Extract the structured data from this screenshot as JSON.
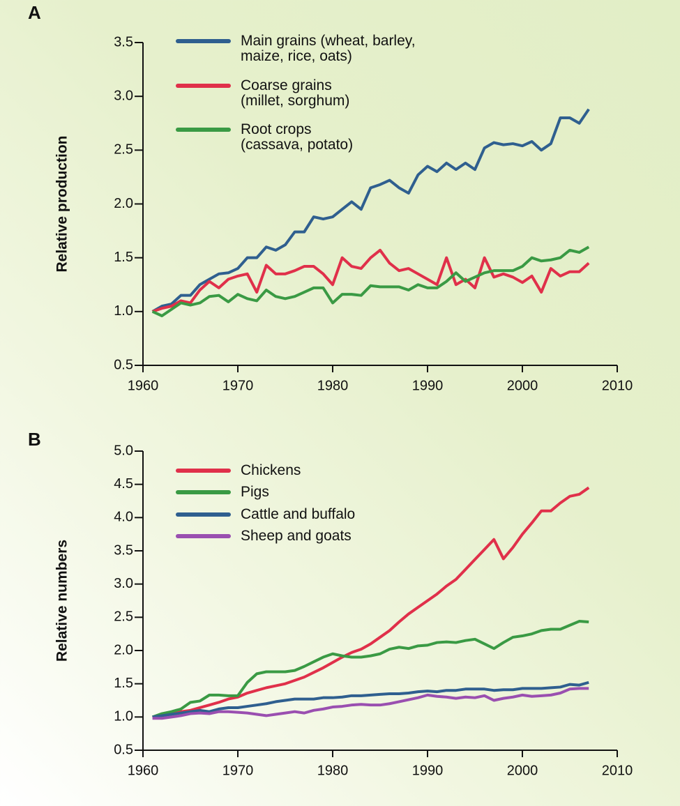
{
  "chart_data": [
    {
      "type": "line",
      "label": "A",
      "y_label": "Relative production",
      "x": [
        1961,
        1962,
        1963,
        1964,
        1965,
        1966,
        1967,
        1968,
        1969,
        1970,
        1971,
        1972,
        1973,
        1974,
        1975,
        1976,
        1977,
        1978,
        1979,
        1980,
        1981,
        1982,
        1983,
        1984,
        1985,
        1986,
        1987,
        1988,
        1989,
        1990,
        1991,
        1992,
        1993,
        1994,
        1995,
        1996,
        1997,
        1998,
        1999,
        2000,
        2001,
        2002,
        2003,
        2004,
        2005,
        2006,
        2007
      ],
      "series": [
        {
          "name": "Main grains (wheat, barley,\nmaize, rice, oats)",
          "color": "#2f5f8f",
          "values": [
            1.0,
            1.05,
            1.07,
            1.15,
            1.15,
            1.25,
            1.3,
            1.35,
            1.36,
            1.4,
            1.5,
            1.5,
            1.6,
            1.57,
            1.62,
            1.74,
            1.74,
            1.88,
            1.86,
            1.88,
            1.95,
            2.02,
            1.95,
            2.15,
            2.18,
            2.22,
            2.15,
            2.1,
            2.27,
            2.35,
            2.3,
            2.38,
            2.32,
            2.38,
            2.32,
            2.52,
            2.57,
            2.55,
            2.56,
            2.54,
            2.58,
            2.5,
            2.56,
            2.8,
            2.8,
            2.75,
            2.88
          ]
        },
        {
          "name": "Coarse grains\n(millet, sorghum)",
          "color": "#e0304a",
          "values": [
            1.0,
            1.03,
            1.05,
            1.1,
            1.08,
            1.2,
            1.28,
            1.22,
            1.3,
            1.33,
            1.35,
            1.18,
            1.43,
            1.35,
            1.35,
            1.38,
            1.42,
            1.42,
            1.35,
            1.25,
            1.5,
            1.42,
            1.4,
            1.5,
            1.57,
            1.45,
            1.38,
            1.4,
            1.35,
            1.3,
            1.25,
            1.5,
            1.25,
            1.3,
            1.22,
            1.5,
            1.32,
            1.35,
            1.32,
            1.27,
            1.33,
            1.18,
            1.4,
            1.33,
            1.37,
            1.37,
            1.45
          ]
        },
        {
          "name": "Root crops\n(cassava, potato)",
          "color": "#3a9a44",
          "values": [
            1.0,
            0.96,
            1.02,
            1.08,
            1.06,
            1.08,
            1.14,
            1.15,
            1.09,
            1.16,
            1.12,
            1.1,
            1.2,
            1.14,
            1.12,
            1.14,
            1.18,
            1.22,
            1.22,
            1.08,
            1.16,
            1.16,
            1.15,
            1.24,
            1.23,
            1.23,
            1.23,
            1.2,
            1.25,
            1.22,
            1.22,
            1.28,
            1.36,
            1.28,
            1.32,
            1.36,
            1.38,
            1.38,
            1.38,
            1.42,
            1.5,
            1.47,
            1.48,
            1.5,
            1.57,
            1.55,
            1.6
          ]
        }
      ],
      "xlim": [
        1960,
        2010
      ],
      "xticks": [
        1960,
        1970,
        1980,
        1990,
        2000,
        2010
      ],
      "ylim": [
        0.5,
        3.5
      ],
      "yticks": [
        0.5,
        {
          "value": 1,
          "label": "1.0"
        },
        1.5,
        {
          "value": 2,
          "label": "2.0"
        },
        2.5,
        {
          "value": 3,
          "label": "3.0"
        },
        3.5
      ]
    },
    {
      "type": "line",
      "label": "B",
      "y_label": "Relative numbers",
      "x": [
        1961,
        1962,
        1963,
        1964,
        1965,
        1966,
        1967,
        1968,
        1969,
        1970,
        1971,
        1972,
        1973,
        1974,
        1975,
        1976,
        1977,
        1978,
        1979,
        1980,
        1981,
        1982,
        1983,
        1984,
        1985,
        1986,
        1987,
        1988,
        1989,
        1990,
        1991,
        1992,
        1993,
        1994,
        1995,
        1996,
        1997,
        1998,
        1999,
        2000,
        2001,
        2002,
        2003,
        2004,
        2005,
        2006,
        2007
      ],
      "series": [
        {
          "name": "Chickens",
          "color": "#e0304a",
          "values": [
            1.0,
            1.02,
            1.05,
            1.08,
            1.1,
            1.14,
            1.18,
            1.22,
            1.27,
            1.3,
            1.36,
            1.4,
            1.44,
            1.47,
            1.5,
            1.55,
            1.6,
            1.67,
            1.74,
            1.82,
            1.9,
            1.97,
            2.02,
            2.1,
            2.2,
            2.3,
            2.43,
            2.55,
            2.65,
            2.75,
            2.85,
            2.97,
            3.07,
            3.22,
            3.37,
            3.52,
            3.67,
            3.38,
            3.55,
            3.75,
            3.92,
            4.1,
            4.1,
            4.22,
            4.32,
            4.35,
            4.45
          ]
        },
        {
          "name": "Pigs",
          "color": "#3a9a44",
          "values": [
            1.0,
            1.05,
            1.08,
            1.12,
            1.22,
            1.24,
            1.33,
            1.33,
            1.32,
            1.32,
            1.52,
            1.65,
            1.68,
            1.68,
            1.68,
            1.7,
            1.76,
            1.83,
            1.9,
            1.95,
            1.92,
            1.9,
            1.9,
            1.92,
            1.95,
            2.02,
            2.05,
            2.03,
            2.07,
            2.08,
            2.12,
            2.13,
            2.12,
            2.15,
            2.17,
            2.1,
            2.03,
            2.12,
            2.2,
            2.22,
            2.25,
            2.3,
            2.32,
            2.32,
            2.38,
            2.44,
            2.43
          ]
        },
        {
          "name": "Cattle and buffalo",
          "color": "#2f5f8f",
          "values": [
            1.0,
            1.02,
            1.04,
            1.06,
            1.08,
            1.1,
            1.08,
            1.12,
            1.14,
            1.14,
            1.16,
            1.18,
            1.2,
            1.23,
            1.25,
            1.27,
            1.27,
            1.27,
            1.29,
            1.29,
            1.3,
            1.32,
            1.32,
            1.33,
            1.34,
            1.35,
            1.35,
            1.36,
            1.38,
            1.39,
            1.38,
            1.4,
            1.4,
            1.42,
            1.42,
            1.42,
            1.4,
            1.41,
            1.41,
            1.43,
            1.43,
            1.43,
            1.44,
            1.45,
            1.49,
            1.48,
            1.52
          ]
        },
        {
          "name": "Sheep and goats",
          "color": "#9a4fb0",
          "values": [
            0.98,
            0.98,
            1.0,
            1.02,
            1.05,
            1.06,
            1.05,
            1.08,
            1.08,
            1.07,
            1.06,
            1.04,
            1.02,
            1.04,
            1.06,
            1.08,
            1.06,
            1.1,
            1.12,
            1.15,
            1.16,
            1.18,
            1.19,
            1.18,
            1.18,
            1.2,
            1.23,
            1.26,
            1.29,
            1.33,
            1.31,
            1.3,
            1.28,
            1.3,
            1.29,
            1.32,
            1.25,
            1.28,
            1.3,
            1.33,
            1.31,
            1.32,
            1.33,
            1.36,
            1.42,
            1.43,
            1.43
          ]
        }
      ],
      "xlim": [
        1960,
        2010
      ],
      "xticks": [
        1960,
        1970,
        1980,
        1990,
        2000,
        2010
      ],
      "ylim": [
        0.5,
        5.0
      ],
      "yticks": [
        0.5,
        {
          "value": 1,
          "label": "1.0"
        },
        1.5,
        {
          "value": 2,
          "label": "2.0"
        },
        2.5,
        {
          "value": 3,
          "label": "3.0"
        },
        3.5,
        {
          "value": 4,
          "label": "4.0"
        },
        4.5,
        {
          "value": 5,
          "label": "5.0"
        }
      ]
    }
  ]
}
